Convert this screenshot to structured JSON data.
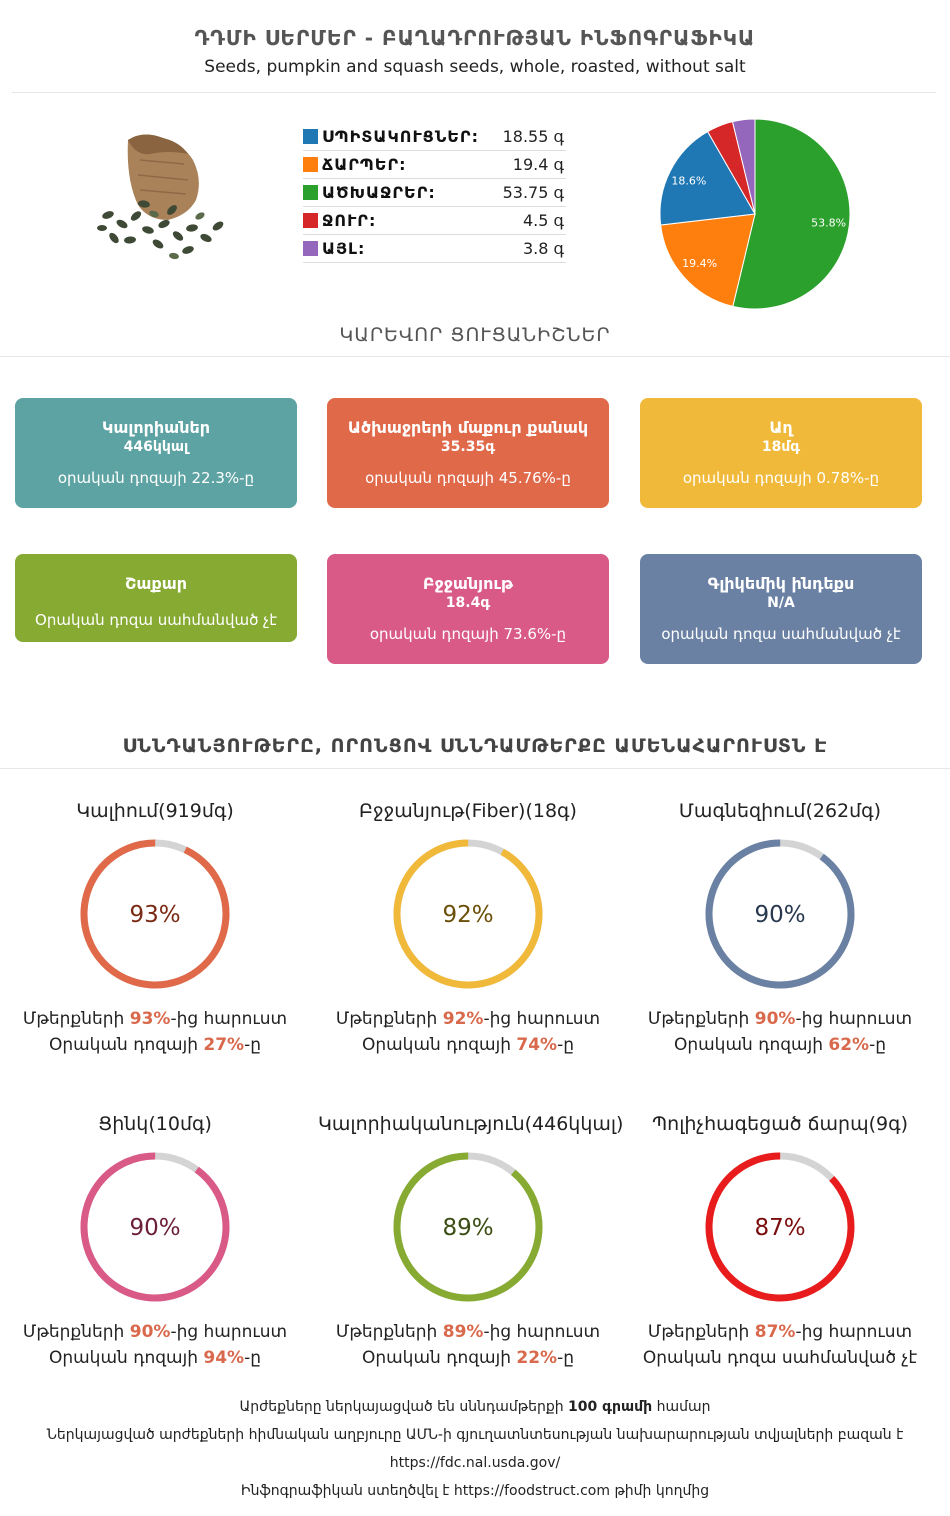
{
  "header": {
    "title": "ԴԴՄԻ ՍԵՐՄԵՐ - ԲԱՂԱԴՐՈՒԹՅԱՆ ԻՆՖՈԳՐԱՖԻԿԱ",
    "subtitle": "Seeds, pumpkin and squash seeds, whole, roasted, without salt"
  },
  "composition": [
    {
      "label": "ՍՊԻՏԱԿՈՒՑՆԵՐ:",
      "value": "18.55 գ",
      "color": "#1f77b4"
    },
    {
      "label": "ՃԱՐՊԵՐ:",
      "value": "19.4 գ",
      "color": "#ff7f0e"
    },
    {
      "label": "ԱԾԽԱՋՐԵՐ:",
      "value": "53.75 գ",
      "color": "#2ca02c"
    },
    {
      "label": "ՋՈՒՐ:",
      "value": "4.5 գ",
      "color": "#d62728"
    },
    {
      "label": "ԱՅԼ:",
      "value": "3.8 գ",
      "color": "#9467bd"
    }
  ],
  "chart_data": {
    "type": "pie",
    "slices": [
      {
        "label": "ԱԾԽԱՋՐԵՐ",
        "value": 53.75,
        "color": "#2ca02c",
        "text": "53.8%"
      },
      {
        "label": "ՃԱՐՊԵՐ",
        "value": 19.4,
        "color": "#ff7f0e",
        "text": "19.4%"
      },
      {
        "label": "ՍՊԻՏԱԿՈՒՑՆԵՐ",
        "value": 18.55,
        "color": "#1f77b4",
        "text": "18.6%"
      },
      {
        "label": "ՋՈՒՐ",
        "value": 4.5,
        "color": "#d62728",
        "text": ""
      },
      {
        "label": "ԱՅԼ",
        "value": 3.8,
        "color": "#9467bd",
        "text": ""
      }
    ]
  },
  "sections": {
    "key_stats": "ԿԱՐԵՎՈՐ ՑՈՒՑԱՆԻՇՆԵՐ",
    "rich_in": "ՍՆՆԴԱՆՅՈՒԹԵՐԸ, ՈՐՈՆՑՈՎ ՍՆՆԴԱՄԹԵՐՔԸ ԱՄԵՆԱՀԱՐՈՒՍՏՆ Է"
  },
  "cards": [
    {
      "title": "Կալորիաներ",
      "value": "446կկալ",
      "desc": "օրական դոզայի 22.3%-ը",
      "color": "#5ea3a3"
    },
    {
      "title": "Ածխաջրերի մաքուր քանակ",
      "value": "35.35գ",
      "desc": "օրական դոզայի 45.76%-ը",
      "color": "#e0694a"
    },
    {
      "title": "Աղ",
      "value": "18մգ",
      "desc": "օրական դոզայի 0.78%-ը",
      "color": "#f0b93a"
    },
    {
      "title": "Շաքար",
      "value": "",
      "desc": "Օրական դոզա սահմանված չէ",
      "color": "#86aa32"
    },
    {
      "title": "Բջջանյութ",
      "value": "18.4գ",
      "desc": "օրական դոզայի 73.6%-ը",
      "color": "#d95a86"
    },
    {
      "title": "Գլիկեմիկ ինդեքս",
      "value": "N/A",
      "desc": "օրական դոզա սահմանված չէ",
      "color": "#6a81a3"
    }
  ],
  "rings": [
    {
      "title": "Կալիում(919մգ)",
      "percent": 93,
      "label": "93%",
      "color": "#e0694a",
      "text_color": "#7a2a14",
      "line1_pre": "Մթերքների ",
      "line1_hl": "93%",
      "line1_post": "-ից հարուստ",
      "line2_pre": "Օրական դոզայի ",
      "line2_hl": "27%",
      "line2_post": "-ը"
    },
    {
      "title": "Բջջանյութ(Fiber)(18գ)",
      "percent": 92,
      "label": "92%",
      "color": "#f0b93a",
      "text_color": "#6b4f0a",
      "line1_pre": "Մթերքների ",
      "line1_hl": "92%",
      "line1_post": "-ից հարուստ",
      "line2_pre": "Օրական դոզայի ",
      "line2_hl": "74%",
      "line2_post": "-ը"
    },
    {
      "title": "Մագնեզիում(262մգ)",
      "percent": 90,
      "label": "90%",
      "color": "#6a81a3",
      "text_color": "#27384f",
      "line1_pre": "Մթերքների ",
      "line1_hl": "90%",
      "line1_post": "-ից հարուստ",
      "line2_pre": "Օրական դոզայի ",
      "line2_hl": "62%",
      "line2_post": "-ը"
    },
    {
      "title": "Ցինկ(10մգ)",
      "percent": 90,
      "label": "90%",
      "color": "#d95a86",
      "text_color": "#6b1e3a",
      "line1_pre": "Մթերքների ",
      "line1_hl": "90%",
      "line1_post": "-ից հարուստ",
      "line2_pre": "Օրական դոզայի ",
      "line2_hl": "94%",
      "line2_post": "-ը"
    },
    {
      "title": "Կալորիականություն(446կկալ)",
      "percent": 89,
      "label": "89%",
      "color": "#86aa32",
      "text_color": "#3b4d12",
      "line1_pre": "Մթերքների ",
      "line1_hl": "89%",
      "line1_post": "-ից հարուստ",
      "line2_pre": "Օրական դոզայի ",
      "line2_hl": "22%",
      "line2_post": "-ը"
    },
    {
      "title": "Պոլիչհագեցած ճարպ(9գ)",
      "percent": 87,
      "label": "87%",
      "color": "#e81c1c",
      "text_color": "#7a0d0d",
      "line1_pre": "Մթերքների ",
      "line1_hl": "87%",
      "line1_post": "-ից հարուստ",
      "line2_pre": "Օրական դոզա սահմանված չէ",
      "line2_hl": "",
      "line2_post": ""
    }
  ],
  "footer": {
    "line1_pre": "Արժեքները ներկայացված են սննդամթերքի ",
    "line1_bold": "100 գրամի",
    "line1_post": " համար",
    "line2": "Ներկայացված արժեքների հիմնական աղբյուրը ԱՄՆ-ի գյուղատնտեսության նախարարության տվյալների բազան է",
    "line3": "https://fdc.nal.usda.gov/",
    "line4_pre": "Ինֆոգրաֆիկան ստեղծվել է ",
    "line4_link": "https://foodstruct.com",
    "line4_post": " թիմի կողմից"
  }
}
